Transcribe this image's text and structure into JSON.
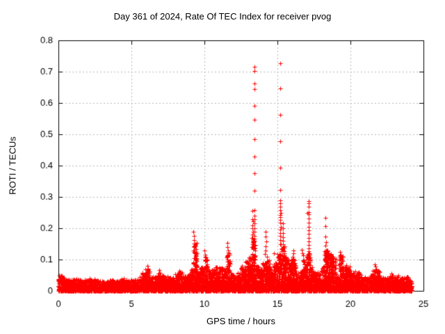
{
  "accent_color": "#ff0000",
  "grid_color": "#b5b5b5",
  "frame_color": "#000000",
  "chart_data": {
    "type": "scatter",
    "title": "Day 361 of 2024, Rate Of TEC Index for receiver pvog",
    "xlabel": "GPS time / hours",
    "ylabel": "ROTI / TECUs",
    "series_name": "ROTI",
    "marker": "plus",
    "marker_color": "#ff0000",
    "grid": true,
    "legend": "none",
    "xlim": [
      0,
      25
    ],
    "ylim": [
      0,
      0.8
    ],
    "xticks": [
      "0",
      "5",
      "10",
      "15",
      "20",
      "25"
    ],
    "yticks": [
      "0",
      "0.1",
      "0.2",
      "0.3",
      "0.4",
      "0.5",
      "0.6",
      "0.7",
      "0.8"
    ],
    "data_t_start": 0,
    "data_t_end": 24.2,
    "base_envelope": {
      "comment": "dense noise cloud: bin start hour -> max ROTI of dense mass, bins of 0.25 h",
      "bin_hours": 0.25,
      "t_start": 0,
      "tops": [
        0.05,
        0.042,
        0.035,
        0.036,
        0.04,
        0.036,
        0.034,
        0.036,
        0.04,
        0.038,
        0.034,
        0.032,
        0.03,
        0.032,
        0.035,
        0.032,
        0.036,
        0.04,
        0.036,
        0.034,
        0.036,
        0.038,
        0.045,
        0.06,
        0.07,
        0.046,
        0.044,
        0.06,
        0.05,
        0.046,
        0.044,
        0.042,
        0.055,
        0.06,
        0.048,
        0.05,
        0.07,
        0.155,
        0.065,
        0.075,
        0.11,
        0.065,
        0.07,
        0.08,
        0.075,
        0.07,
        0.12,
        0.055,
        0.048,
        0.06,
        0.08,
        0.095,
        0.11,
        0.17,
        0.08,
        0.07,
        0.09,
        0.1,
        0.07,
        0.09,
        0.12,
        0.15,
        0.11,
        0.1,
        0.11,
        0.06,
        0.065,
        0.1,
        0.12,
        0.075,
        0.06,
        0.055,
        0.08,
        0.13,
        0.12,
        0.11,
        0.045,
        0.115,
        0.085,
        0.08,
        0.06,
        0.055,
        0.06,
        0.045,
        0.042,
        0.05,
        0.07,
        0.065,
        0.04,
        0.042,
        0.048,
        0.05,
        0.045,
        0.04,
        0.042,
        0.045,
        0.035
      ]
    },
    "spike_points": [
      [
        5.95,
        0.068
      ],
      [
        6.08,
        0.08
      ],
      [
        6.12,
        0.072
      ],
      [
        6.9,
        0.066
      ],
      [
        8.3,
        0.064
      ],
      [
        9.26,
        0.19
      ],
      [
        9.28,
        0.176
      ],
      [
        9.3,
        0.163
      ],
      [
        9.27,
        0.152
      ],
      [
        9.32,
        0.142
      ],
      [
        9.35,
        0.13
      ],
      [
        9.33,
        0.12
      ],
      [
        9.45,
        0.118
      ],
      [
        10.0,
        0.128
      ],
      [
        10.04,
        0.116
      ],
      [
        10.08,
        0.106
      ],
      [
        11.55,
        0.153
      ],
      [
        11.58,
        0.14
      ],
      [
        11.6,
        0.13
      ],
      [
        11.63,
        0.122
      ],
      [
        13.28,
        0.256
      ],
      [
        13.3,
        0.229
      ],
      [
        13.31,
        0.222
      ],
      [
        13.29,
        0.21
      ],
      [
        13.3,
        0.2
      ],
      [
        13.32,
        0.19
      ],
      [
        13.3,
        0.18
      ],
      [
        13.28,
        0.17
      ],
      [
        13.31,
        0.158
      ],
      [
        13.29,
        0.148
      ],
      [
        13.33,
        0.138
      ],
      [
        13.43,
        0.715
      ],
      [
        13.44,
        0.703
      ],
      [
        13.43,
        0.662
      ],
      [
        13.44,
        0.645
      ],
      [
        13.43,
        0.591
      ],
      [
        13.44,
        0.546
      ],
      [
        13.43,
        0.485
      ],
      [
        13.44,
        0.43
      ],
      [
        13.43,
        0.375
      ],
      [
        13.44,
        0.32
      ],
      [
        13.43,
        0.258
      ],
      [
        13.44,
        0.24
      ],
      [
        13.43,
        0.228
      ],
      [
        13.45,
        0.215
      ],
      [
        13.42,
        0.2
      ],
      [
        13.44,
        0.188
      ],
      [
        13.43,
        0.176
      ],
      [
        14.18,
        0.19
      ],
      [
        14.2,
        0.173
      ],
      [
        14.22,
        0.157
      ],
      [
        14.19,
        0.143
      ],
      [
        14.21,
        0.13
      ],
      [
        14.15,
        0.118
      ],
      [
        14.3,
        0.11
      ],
      [
        14.76,
        0.12
      ],
      [
        15.19,
        0.727
      ],
      [
        15.2,
        0.647
      ],
      [
        15.19,
        0.562
      ],
      [
        15.2,
        0.478
      ],
      [
        15.19,
        0.393
      ],
      [
        15.2,
        0.322
      ],
      [
        15.19,
        0.29
      ],
      [
        15.21,
        0.28
      ],
      [
        15.19,
        0.268
      ],
      [
        15.2,
        0.258
      ],
      [
        15.22,
        0.25
      ],
      [
        15.19,
        0.243
      ],
      [
        15.21,
        0.235
      ],
      [
        15.19,
        0.226
      ],
      [
        15.2,
        0.218
      ],
      [
        15.22,
        0.205
      ],
      [
        15.19,
        0.195
      ],
      [
        15.21,
        0.185
      ],
      [
        15.2,
        0.175
      ],
      [
        15.19,
        0.162
      ],
      [
        15.21,
        0.15
      ],
      [
        15.36,
        0.215
      ],
      [
        15.38,
        0.2
      ],
      [
        15.37,
        0.185
      ],
      [
        15.39,
        0.172
      ],
      [
        15.38,
        0.16
      ],
      [
        15.4,
        0.15
      ],
      [
        15.37,
        0.14
      ],
      [
        15.39,
        0.13
      ],
      [
        16.08,
        0.13
      ],
      [
        16.1,
        0.12
      ],
      [
        16.68,
        0.132
      ],
      [
        16.72,
        0.121
      ],
      [
        16.76,
        0.113
      ],
      [
        17.05,
        0.25
      ],
      [
        17.12,
        0.287
      ],
      [
        17.13,
        0.279
      ],
      [
        17.12,
        0.27
      ],
      [
        17.14,
        0.252
      ],
      [
        17.12,
        0.244
      ],
      [
        17.13,
        0.231
      ],
      [
        17.12,
        0.218
      ],
      [
        17.14,
        0.205
      ],
      [
        17.12,
        0.193
      ],
      [
        17.13,
        0.182
      ],
      [
        17.12,
        0.17
      ],
      [
        17.14,
        0.158
      ],
      [
        17.12,
        0.147
      ],
      [
        17.13,
        0.136
      ],
      [
        17.15,
        0.126
      ],
      [
        18.28,
        0.233
      ],
      [
        18.3,
        0.207
      ],
      [
        18.29,
        0.173
      ],
      [
        18.32,
        0.155
      ],
      [
        18.27,
        0.145
      ],
      [
        19.28,
        0.125
      ],
      [
        19.32,
        0.115
      ],
      [
        20.35,
        0.062
      ],
      [
        21.68,
        0.085
      ],
      [
        21.72,
        0.078
      ],
      [
        21.76,
        0.07
      ],
      [
        22.8,
        0.055
      ],
      [
        23.3,
        0.05
      ]
    ]
  }
}
